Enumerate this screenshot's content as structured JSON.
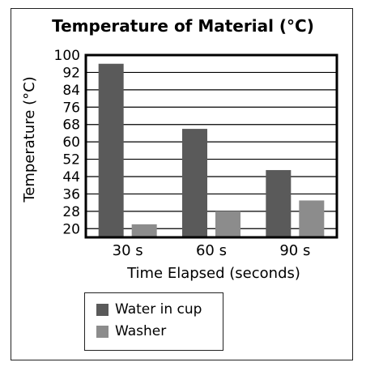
{
  "chart_data": {
    "type": "bar",
    "title": "Temperature of Material (°C)",
    "xlabel": "Time Elapsed (seconds)",
    "ylabel": "Temperature (°C)",
    "categories": [
      "30 s",
      "60 s",
      "90 s"
    ],
    "yticks": [
      20,
      28,
      36,
      44,
      52,
      60,
      68,
      76,
      84,
      92,
      100
    ],
    "ylim": [
      16,
      100
    ],
    "grid": true,
    "legend_position": "bottom-left",
    "series": [
      {
        "name": "Water in cup",
        "values": [
          96,
          66,
          47
        ],
        "color": "#5a5a5a"
      },
      {
        "name": "Washer",
        "values": [
          22,
          28,
          33
        ],
        "color": "#8c8c8c"
      }
    ]
  }
}
